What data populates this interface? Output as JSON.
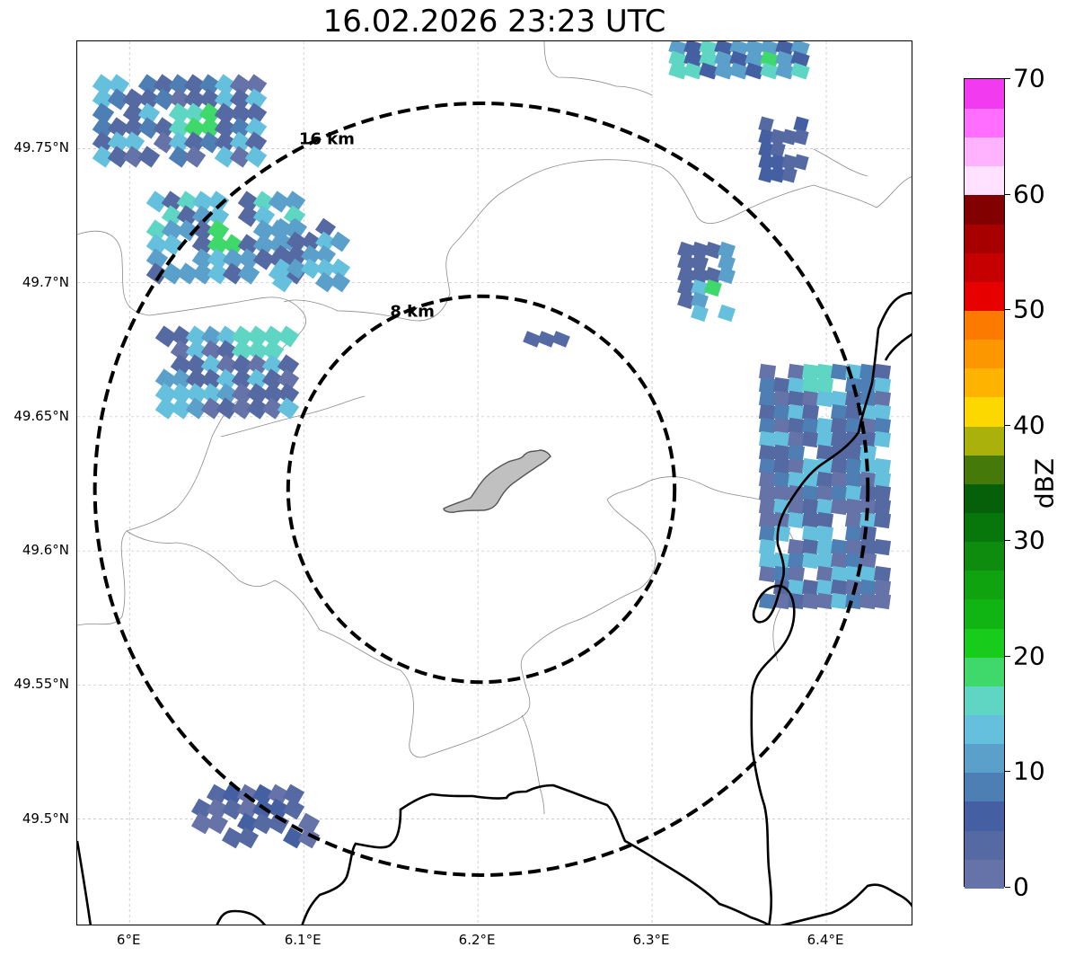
{
  "title": "16.02.2026 23:23 UTC",
  "map": {
    "lat_ticks": [
      {
        "value": 49.75,
        "label": "49.75°N"
      },
      {
        "value": 49.7,
        "label": "49.7°N"
      },
      {
        "value": 49.65,
        "label": "49.65°N"
      },
      {
        "value": 49.6,
        "label": "49.6°N"
      },
      {
        "value": 49.55,
        "label": "49.55°N"
      },
      {
        "value": 49.5,
        "label": "49.5°N"
      }
    ],
    "lon_ticks": [
      {
        "value": 6.0,
        "label": "6°E"
      },
      {
        "value": 6.1,
        "label": "6.1°E"
      },
      {
        "value": 6.2,
        "label": "6.2°E"
      },
      {
        "value": 6.3,
        "label": "6.3°E"
      },
      {
        "value": 6.4,
        "label": "6.4°E"
      }
    ],
    "lon_range": [
      5.97,
      6.45
    ],
    "lat_range": [
      49.46,
      49.79
    ],
    "radar_center": {
      "lon": 6.202,
      "lat": 49.623
    },
    "range_rings": [
      {
        "label": "8 km",
        "radius_km": 8
      },
      {
        "label": "16 km",
        "radius_km": 16
      }
    ],
    "gridlines": true,
    "colors": {
      "ring": "#000000",
      "border": "#000000",
      "admin": "#8a8a8a",
      "grid": "#b0b0b0",
      "city_fill": "#c0c0c0"
    }
  },
  "colorbar": {
    "label": "dBZ",
    "min": 0,
    "max": 70,
    "ticks": [
      {
        "value": 0,
        "label": "0"
      },
      {
        "value": 10,
        "label": "10"
      },
      {
        "value": 20,
        "label": "20"
      },
      {
        "value": 30,
        "label": "30"
      },
      {
        "value": 40,
        "label": "40"
      },
      {
        "value": 50,
        "label": "50"
      },
      {
        "value": 60,
        "label": "60"
      },
      {
        "value": 70,
        "label": "70"
      }
    ],
    "colors": [
      "#6573a8",
      "#5569a3",
      "#4560a2",
      "#4d7fb5",
      "#5aa0cb",
      "#65c0de",
      "#5fd6c4",
      "#3fd86a",
      "#18cc1c",
      "#10b514",
      "#0fa310",
      "#0d8c0e",
      "#08770b",
      "#06600a",
      "#457a0a",
      "#aab10a",
      "#fdd800",
      "#fdb300",
      "#fd9700",
      "#fd7a00",
      "#e60000",
      "#c60000",
      "#a80000",
      "#820000",
      "#ffe2ff",
      "#ffb3ff",
      "#ff6eff",
      "#f23af0"
    ]
  }
}
